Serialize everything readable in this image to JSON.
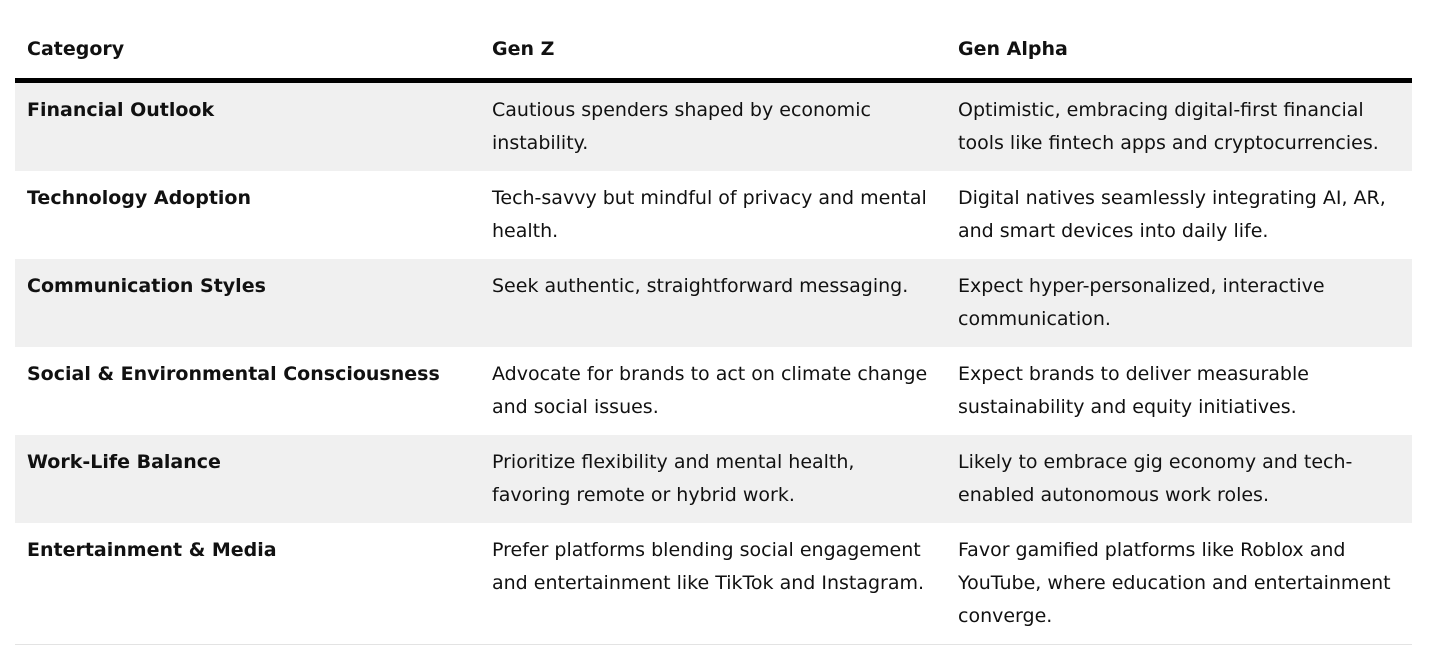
{
  "table": {
    "headers": [
      "Category",
      "Gen Z",
      "Gen Alpha"
    ],
    "rows": [
      {
        "category": "Financial Outlook",
        "gen_z": "Cautious spenders shaped by economic instability.",
        "gen_alpha": "Optimistic, embracing digital-first financial tools like fintech apps and cryptocurrencies."
      },
      {
        "category": "Technology Adoption",
        "gen_z": "Tech-savvy but mindful of privacy and mental health.",
        "gen_alpha": "Digital natives seamlessly integrating AI, AR, and smart devices into daily life."
      },
      {
        "category": "Communication Styles",
        "gen_z": "Seek authentic, straightforward messaging.",
        "gen_alpha": "Expect hyper-personalized, interactive communication."
      },
      {
        "category": "Social & Environmental Consciousness",
        "gen_z": "Advocate for brands to act on climate change and social issues.",
        "gen_alpha": "Expect brands to deliver measurable sustainability and equity initiatives."
      },
      {
        "category": "Work-Life Balance",
        "gen_z": "Prioritize flexibility and mental health, favoring remote or hybrid work.",
        "gen_alpha": "Likely to embrace gig economy and tech-enabled autonomous work roles."
      },
      {
        "category": "Entertainment & Media",
        "gen_z": "Prefer platforms blending social engagement and entertainment like TikTok and Instagram.",
        "gen_alpha": "Favor gamified platforms like Roblox and YouTube, where education and entertainment converge."
      }
    ]
  }
}
